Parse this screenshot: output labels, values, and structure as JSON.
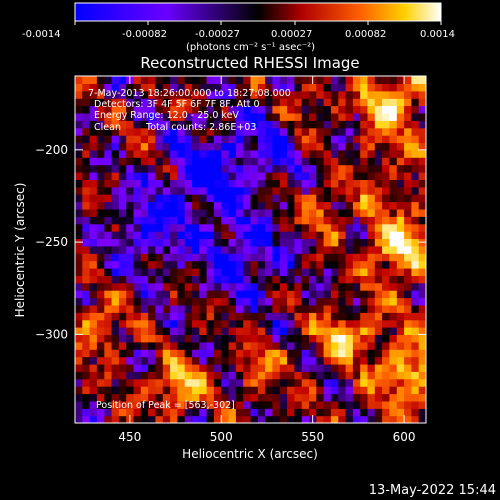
{
  "colorbar": {
    "ticks": [
      "-0.0014",
      "-0.00082",
      "-0.00027",
      "0.00027",
      "0.00082",
      "0.0014"
    ],
    "unit_label": "(photons cm⁻² s⁻¹ asec⁻²)",
    "range": [
      -0.0014,
      0.0014
    ],
    "palette": [
      "#0000ff",
      "#7f00ff",
      "#000000",
      "#c00000",
      "#ff6000",
      "#ffd000",
      "#ffffff"
    ]
  },
  "chart_data": {
    "type": "heatmap",
    "title": "Reconstructed RHESSI Image",
    "xlabel": "Heliocentric X (arcsec)",
    "ylabel": "Heliocentric Y (arcsec)",
    "xlim": [
      420,
      612
    ],
    "ylim": [
      -348,
      -160
    ],
    "xticks": [
      450,
      500,
      550,
      600
    ],
    "yticks": [
      -200,
      -250,
      -300
    ],
    "annotations": {
      "time": "7-May-2013 18:26:00.000 to 18:27:08.000",
      "detectors": "Detectors: 3F 4F 5F 6F 7F 8F, Att 0",
      "energy": "Energy Range: 12.0 - 25.0 keV",
      "clean": "Clean",
      "counts": "Total counts: 2.86E+03",
      "peak": "Position of Peak = [563,-302]"
    },
    "peak": [
      563,
      -302
    ],
    "bright_regions": [
      {
        "x": 563,
        "y": -302,
        "level": 1.0
      },
      {
        "x": 475,
        "y": -330,
        "level": 0.95
      },
      {
        "x": 595,
        "y": -255,
        "level": 0.9
      },
      {
        "x": 590,
        "y": -175,
        "level": 0.85
      },
      {
        "x": 555,
        "y": -235,
        "level": 0.6
      },
      {
        "x": 430,
        "y": -300,
        "level": 0.7
      },
      {
        "x": 520,
        "y": -320,
        "level": 0.55
      },
      {
        "x": 600,
        "y": -320,
        "level": 0.75
      },
      {
        "x": 545,
        "y": -180,
        "level": 0.5
      }
    ],
    "dim_regions": [
      {
        "x": 490,
        "y": -215,
        "level": -0.8
      },
      {
        "x": 510,
        "y": -260,
        "level": -0.7
      },
      {
        "x": 460,
        "y": -245,
        "level": -0.6
      },
      {
        "x": 525,
        "y": -200,
        "level": -0.5
      }
    ]
  },
  "footer": {
    "date": "13-May-2022 15:44"
  }
}
